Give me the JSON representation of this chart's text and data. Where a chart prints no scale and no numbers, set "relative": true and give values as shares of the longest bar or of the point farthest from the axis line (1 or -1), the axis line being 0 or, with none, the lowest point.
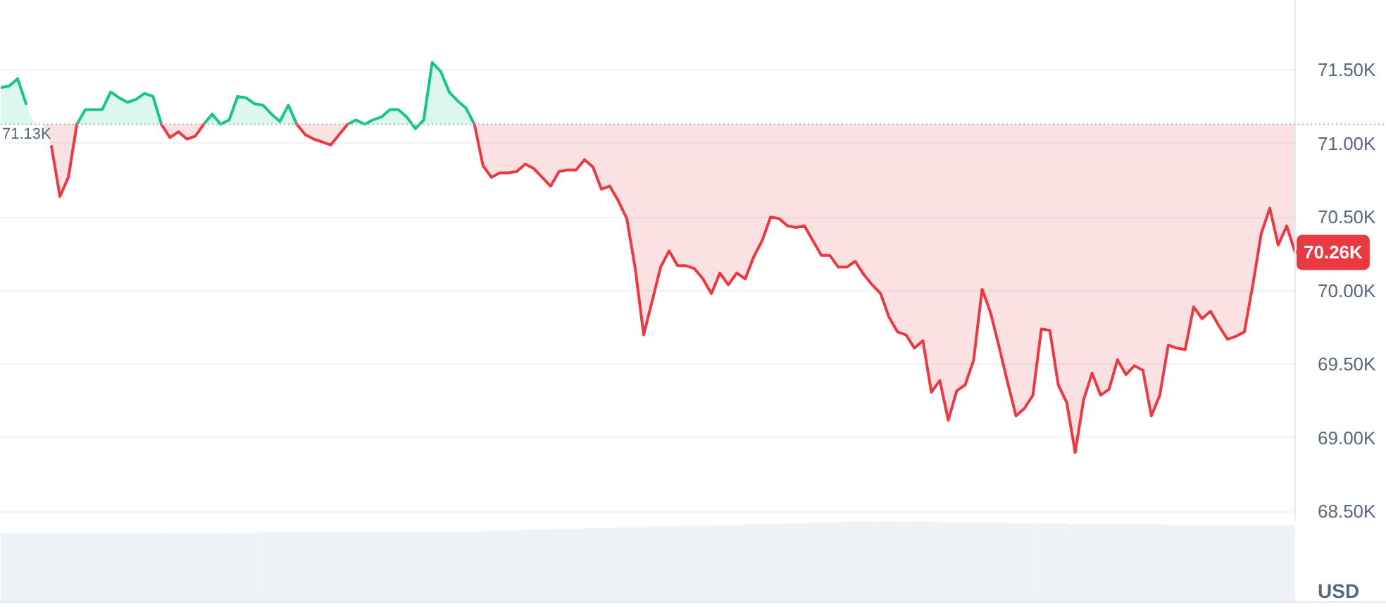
{
  "chart_data": [
    {
      "type": "line",
      "ylabel": "USD",
      "categories": [
        null,
        null,
        null,
        null,
        null,
        null,
        null,
        null,
        null,
        null,
        null,
        null,
        null,
        null,
        null,
        null,
        null,
        null,
        null,
        null,
        null,
        null,
        null,
        null,
        null,
        null,
        null,
        null,
        null,
        null,
        null,
        null,
        null,
        null,
        null,
        null,
        null,
        null,
        null,
        null,
        null,
        null,
        null,
        null,
        null,
        null,
        null,
        null,
        null,
        null,
        null,
        null,
        null,
        null,
        null,
        null,
        null,
        null,
        null,
        null,
        null,
        null,
        null,
        null,
        null,
        null,
        null,
        null,
        null,
        null,
        null,
        null,
        null,
        null,
        null,
        null,
        null,
        null,
        null,
        null,
        null,
        null,
        null,
        null,
        null,
        null,
        null,
        null,
        null,
        null,
        null,
        null,
        null,
        null,
        null,
        null,
        null,
        null,
        null,
        null,
        null,
        null,
        null,
        null,
        null,
        null,
        null,
        null,
        null,
        null,
        null,
        null,
        null,
        null,
        null,
        null,
        null,
        null,
        null,
        null,
        null,
        null,
        null,
        null,
        null,
        null,
        null,
        null,
        null,
        null,
        null,
        null,
        null,
        null,
        null,
        null,
        null,
        null,
        null,
        null,
        null,
        null,
        null,
        null,
        null,
        null,
        null,
        null,
        null,
        null,
        null,
        null,
        null,
        null
      ],
      "series": [
        {
          "color": "#16c784",
          "values": [
            71.38,
            71.39,
            71.44,
            71.27,
            null,
            null,
            null,
            null,
            null,
            71.13,
            71.23,
            71.23,
            71.23,
            71.35,
            71.31,
            71.28,
            71.3,
            71.34,
            71.32,
            71.13,
            null,
            null,
            null,
            null,
            71.13,
            71.2,
            71.13,
            71.16,
            71.32,
            71.31,
            71.27,
            71.26,
            71.2,
            71.15,
            71.26,
            71.13,
            null,
            null,
            null,
            null,
            null,
            71.13,
            71.16,
            71.13,
            71.16,
            71.18,
            71.23,
            71.23,
            71.18,
            71.1,
            71.16,
            71.55,
            71.49,
            71.35,
            71.29,
            71.24,
            71.13,
            null,
            null,
            null,
            null,
            null,
            null,
            null,
            null,
            null,
            null,
            null,
            null,
            null,
            null,
            null,
            null,
            null,
            null,
            null,
            null,
            null,
            null,
            null,
            null,
            null,
            null,
            null,
            null,
            null,
            null,
            null,
            null,
            null,
            null,
            null,
            null,
            null,
            null,
            null,
            null,
            null,
            null,
            null,
            null,
            null,
            null,
            null,
            null,
            null,
            null,
            null,
            null,
            null,
            null,
            null,
            null,
            null,
            null,
            null,
            null,
            null,
            null,
            null,
            null,
            null,
            null,
            null,
            null,
            null,
            null,
            null,
            null,
            null,
            null,
            null,
            null,
            null,
            null,
            null,
            null,
            null,
            null,
            null,
            null,
            null,
            null,
            null,
            null,
            null,
            null,
            null,
            null,
            null,
            null,
            null,
            null,
            null
          ],
          "lower": [
            71.13,
            71.13,
            71.13,
            71.13,
            71.13,
            71.13,
            71.13,
            71.13,
            71.13,
            71.13,
            71.13,
            71.13,
            71.13,
            71.13,
            71.13,
            71.13,
            71.13,
            71.13,
            71.13,
            71.13,
            71.13,
            71.13,
            71.13,
            71.13,
            71.13,
            71.13,
            71.13,
            71.13,
            71.13,
            71.13,
            71.13,
            71.13,
            71.13,
            71.13,
            71.13,
            71.13,
            71.13,
            71.13,
            71.13,
            71.13,
            71.13,
            71.13,
            71.13,
            71.13,
            71.13,
            71.13,
            71.13,
            71.13,
            71.13,
            71.13,
            71.13,
            71.13,
            71.13,
            71.13,
            71.13,
            71.13,
            71.13,
            null,
            null,
            null,
            null,
            null,
            null,
            null,
            null,
            null,
            null,
            null,
            null,
            null,
            null,
            null,
            null,
            null,
            null,
            null,
            null,
            null,
            null,
            null,
            null,
            null,
            null,
            null,
            null,
            null,
            null,
            null,
            null,
            null,
            null,
            null,
            null,
            null,
            null,
            null,
            null,
            null,
            null,
            null,
            null,
            null,
            null,
            null,
            null,
            null,
            null,
            null,
            null,
            null,
            null,
            null,
            null,
            null,
            null,
            null,
            null,
            null,
            null,
            null,
            null,
            null,
            null,
            null,
            null,
            null,
            null,
            null,
            null,
            null,
            null,
            null,
            null,
            null,
            null,
            null,
            null,
            null,
            null,
            null,
            null,
            null,
            null,
            null,
            null,
            null,
            null,
            null,
            null,
            null,
            null,
            null,
            null,
            null
          ],
          "upper": [
            71.38,
            71.39,
            71.44,
            71.27,
            71.13,
            71.13,
            71.13,
            71.13,
            71.13,
            71.13,
            71.23,
            71.23,
            71.23,
            71.35,
            71.31,
            71.28,
            71.3,
            71.34,
            71.32,
            71.13,
            71.13,
            71.13,
            71.13,
            71.13,
            71.13,
            71.2,
            71.13,
            71.16,
            71.32,
            71.31,
            71.27,
            71.26,
            71.2,
            71.15,
            71.26,
            71.13,
            71.13,
            71.13,
            71.13,
            71.13,
            71.13,
            71.13,
            71.16,
            71.13,
            71.16,
            71.18,
            71.23,
            71.23,
            71.18,
            71.1,
            71.16,
            71.55,
            71.49,
            71.35,
            71.29,
            71.24,
            71.13,
            null,
            null,
            null,
            null,
            null,
            null,
            null,
            null,
            null,
            null,
            null,
            null,
            null,
            null,
            null,
            null,
            null,
            null,
            null,
            null,
            null,
            null,
            null,
            null,
            null,
            null,
            null,
            null,
            null,
            null,
            null,
            null,
            null,
            null,
            null,
            null,
            null,
            null,
            null,
            null,
            null,
            null,
            null,
            null,
            null,
            null,
            null,
            null,
            null,
            null,
            null,
            null,
            null,
            null,
            null,
            null,
            null,
            null,
            null,
            null,
            null,
            null,
            null,
            null,
            null,
            null,
            null,
            null,
            null,
            null,
            null,
            null,
            null,
            null,
            null,
            null,
            null,
            null,
            null,
            null,
            null,
            null,
            null,
            null,
            null,
            null,
            null,
            null,
            null,
            null,
            null,
            null,
            null,
            null,
            null,
            null,
            null
          ]
        },
        {
          "color": "#ea3943",
          "values": [
            null,
            null,
            null,
            null,
            null,
            null,
            70.98,
            70.64,
            70.77,
            71.13,
            null,
            null,
            null,
            null,
            null,
            null,
            null,
            null,
            null,
            71.13,
            71.04,
            71.08,
            71.03,
            71.05,
            71.13,
            null,
            null,
            null,
            null,
            null,
            null,
            null,
            null,
            null,
            null,
            71.13,
            71.06,
            71.03,
            71.01,
            70.99,
            71.06,
            71.13,
            null,
            null,
            null,
            null,
            null,
            null,
            null,
            null,
            null,
            null,
            null,
            null,
            null,
            null,
            71.13,
            70.85,
            70.77,
            70.8,
            70.8,
            70.81,
            70.86,
            70.83,
            70.77,
            70.71,
            70.81,
            70.82,
            70.82,
            70.89,
            70.84,
            70.69,
            70.71,
            70.61,
            70.49,
            70.15,
            69.7,
            69.93,
            70.16,
            70.27,
            70.17,
            70.17,
            70.15,
            70.08,
            69.98,
            70.12,
            70.04,
            70.12,
            70.08,
            70.23,
            70.34,
            70.5,
            70.49,
            70.44,
            70.43,
            70.44,
            70.34,
            70.24,
            70.24,
            70.16,
            70.16,
            70.2,
            70.11,
            70.04,
            69.98,
            69.82,
            69.72,
            69.7,
            69.61,
            69.66,
            69.31,
            69.39,
            69.12,
            69.32,
            69.36,
            69.53,
            70.01,
            69.85,
            69.62,
            69.38,
            69.15,
            69.2,
            69.29,
            69.74,
            69.73,
            69.36,
            69.24,
            68.9,
            69.26,
            69.44,
            69.29,
            69.33,
            69.53,
            69.43,
            69.49,
            69.46,
            69.15,
            69.29,
            69.63,
            69.61,
            69.6,
            69.89,
            69.81,
            69.86,
            69.76,
            69.67,
            69.69,
            69.72,
            70.04,
            70.39,
            70.56,
            70.31,
            70.44,
            70.26
          ],
          "lower": [
            71.13,
            71.13,
            71.13,
            71.13,
            71.13,
            71.13,
            70.98,
            70.64,
            70.77,
            71.13,
            71.13,
            71.13,
            71.13,
            71.13,
            71.13,
            71.13,
            71.13,
            71.13,
            71.13,
            71.13,
            71.04,
            71.08,
            71.03,
            71.05,
            71.13,
            71.13,
            71.13,
            71.13,
            71.13,
            71.13,
            71.13,
            71.13,
            71.13,
            71.13,
            71.13,
            71.13,
            71.06,
            71.03,
            71.01,
            70.99,
            71.06,
            71.13,
            71.13,
            71.13,
            71.13,
            71.13,
            71.13,
            71.13,
            71.13,
            71.13,
            71.13,
            71.13,
            71.13,
            71.13,
            71.13,
            71.13,
            71.13,
            70.85,
            70.77,
            70.8,
            70.8,
            70.81,
            70.86,
            70.83,
            70.77,
            70.71,
            70.81,
            70.82,
            70.82,
            70.89,
            70.84,
            70.69,
            70.71,
            70.61,
            70.49,
            70.15,
            69.7,
            69.93,
            70.16,
            70.27,
            70.17,
            70.17,
            70.15,
            70.08,
            69.98,
            70.12,
            70.04,
            70.12,
            70.08,
            70.23,
            70.34,
            70.5,
            70.49,
            70.44,
            70.43,
            70.44,
            70.34,
            70.24,
            70.24,
            70.16,
            70.16,
            70.2,
            70.11,
            70.04,
            69.98,
            69.82,
            69.72,
            69.7,
            69.61,
            69.66,
            69.31,
            69.39,
            69.12,
            69.32,
            69.36,
            69.53,
            70.01,
            69.85,
            69.62,
            69.38,
            69.15,
            69.2,
            69.29,
            69.74,
            69.73,
            69.36,
            69.24,
            68.9,
            69.26,
            69.44,
            69.29,
            69.33,
            69.53,
            69.43,
            69.49,
            69.46,
            69.15,
            69.29,
            69.63,
            69.61,
            69.6,
            69.89,
            69.81,
            69.86,
            69.76,
            69.67,
            69.69,
            69.72,
            70.04,
            70.39,
            70.56,
            70.31,
            70.44,
            70.26
          ],
          "upper": [
            71.13,
            71.13,
            71.13,
            71.13,
            71.13,
            71.13,
            71.13,
            71.13,
            71.13,
            71.13,
            71.13,
            71.13,
            71.13,
            71.13,
            71.13,
            71.13,
            71.13,
            71.13,
            71.13,
            71.13,
            71.13,
            71.13,
            71.13,
            71.13,
            71.13,
            71.13,
            71.13,
            71.13,
            71.13,
            71.13,
            71.13,
            71.13,
            71.13,
            71.13,
            71.13,
            71.13,
            71.13,
            71.13,
            71.13,
            71.13,
            71.13,
            71.13,
            71.13,
            71.13,
            71.13,
            71.13,
            71.13,
            71.13,
            71.13,
            71.13,
            71.13,
            71.13,
            71.13,
            71.13,
            71.13,
            71.13,
            71.13,
            71.13,
            71.13,
            71.13,
            71.13,
            71.13,
            71.13,
            71.13,
            71.13,
            71.13,
            71.13,
            71.13,
            71.13,
            71.13,
            71.13,
            71.13,
            71.13,
            71.13,
            71.13,
            71.13,
            71.13,
            71.13,
            71.13,
            71.13,
            71.13,
            71.13,
            71.13,
            71.13,
            71.13,
            71.13,
            71.13,
            71.13,
            71.13,
            71.13,
            71.13,
            71.13,
            71.13,
            71.13,
            71.13,
            71.13,
            71.13,
            71.13,
            71.13,
            71.13,
            71.13,
            71.13,
            71.13,
            71.13,
            71.13,
            71.13,
            71.13,
            71.13,
            71.13,
            71.13,
            71.13,
            71.13,
            71.13,
            71.13,
            71.13,
            71.13,
            71.13,
            71.13,
            71.13,
            71.13,
            71.13,
            71.13,
            71.13,
            71.13,
            71.13,
            71.13,
            71.13,
            71.13,
            71.13,
            71.13,
            71.13,
            71.13,
            71.13,
            71.13,
            71.13,
            71.13,
            71.13,
            71.13,
            71.13,
            71.13,
            71.13,
            71.13,
            71.13,
            71.13,
            71.13,
            71.13,
            71.13,
            71.13,
            71.13,
            71.13,
            71.13,
            71.13,
            71.13,
            71.13
          ],
          "value_labels": [
            null,
            null,
            null,
            null,
            null,
            null,
            null,
            null,
            null,
            null,
            null,
            null,
            null,
            null,
            null,
            null,
            null,
            null,
            null,
            null,
            null,
            null,
            null,
            null,
            null,
            null,
            null,
            null,
            null,
            null,
            null,
            null,
            null,
            null,
            null,
            null,
            null,
            null,
            null,
            null,
            null,
            null,
            null,
            null,
            null,
            null,
            null,
            null,
            null,
            null,
            null,
            null,
            null,
            null,
            null,
            null,
            null,
            null,
            null,
            null,
            null,
            null,
            null,
            null,
            null,
            null,
            null,
            null,
            null,
            null,
            null,
            null,
            null,
            null,
            null,
            null,
            null,
            null,
            null,
            null,
            null,
            null,
            null,
            null,
            null,
            null,
            null,
            null,
            null,
            null,
            null,
            null,
            null,
            null,
            null,
            null,
            null,
            null,
            null,
            null,
            null,
            null,
            null,
            null,
            null,
            null,
            null,
            null,
            null,
            null,
            null,
            null,
            null,
            null,
            null,
            null,
            null,
            null,
            null,
            null,
            null,
            null,
            null,
            null,
            null,
            null,
            null,
            null,
            null,
            null,
            null,
            null,
            null,
            null,
            null,
            null,
            null,
            null,
            null,
            null,
            null,
            null,
            null,
            null,
            null,
            null,
            null,
            null,
            null,
            null,
            null,
            null,
            null,
            "70.26K"
          ]
        }
      ],
      "ylim": [
        68.43,
        71.97
      ],
      "yticks": [
        {
          "value": 68.5,
          "label": "68.50K"
        },
        {
          "value": 69.0,
          "label": "69.00K"
        },
        {
          "value": 69.5,
          "label": "69.50K"
        },
        {
          "value": 70.0,
          "label": "70.00K"
        },
        {
          "value": 70.5,
          "label": "70.50K"
        },
        {
          "value": 71.0,
          "label": "71.00K"
        },
        {
          "value": 71.5,
          "label": "71.50K"
        }
      ],
      "grid": "y",
      "ref_lines": [
        {
          "axis": "y",
          "value": 71.13,
          "label": "71.13K",
          "color": "#a6b0c3",
          "line_style": "dotted"
        }
      ]
    },
    {
      "type": "bar",
      "relative": true,
      "color": "#eff2f5",
      "categories": [
        null,
        null,
        null,
        null,
        null,
        null,
        null,
        null,
        null,
        null,
        null,
        null,
        null,
        null,
        null,
        null,
        null,
        null,
        null,
        null,
        null,
        null,
        null,
        null,
        null,
        null,
        null,
        null,
        null,
        null,
        null,
        null,
        null,
        null,
        null,
        null,
        null,
        null,
        null,
        null
      ],
      "values": [
        0.86,
        0.86,
        0.86,
        0.86,
        0.86,
        0.86,
        0.86,
        0.86,
        0.87,
        0.87,
        0.87,
        0.87,
        0.87,
        0.88,
        0.88,
        0.89,
        0.9,
        0.91,
        0.92,
        0.93,
        0.94,
        0.95,
        0.96,
        0.97,
        0.98,
        0.99,
        1.0,
        1.0,
        1.0,
        0.99,
        0.99,
        0.98,
        0.98,
        0.97,
        0.97,
        0.97,
        0.96,
        0.96,
        0.96,
        0.96
      ]
    }
  ]
}
